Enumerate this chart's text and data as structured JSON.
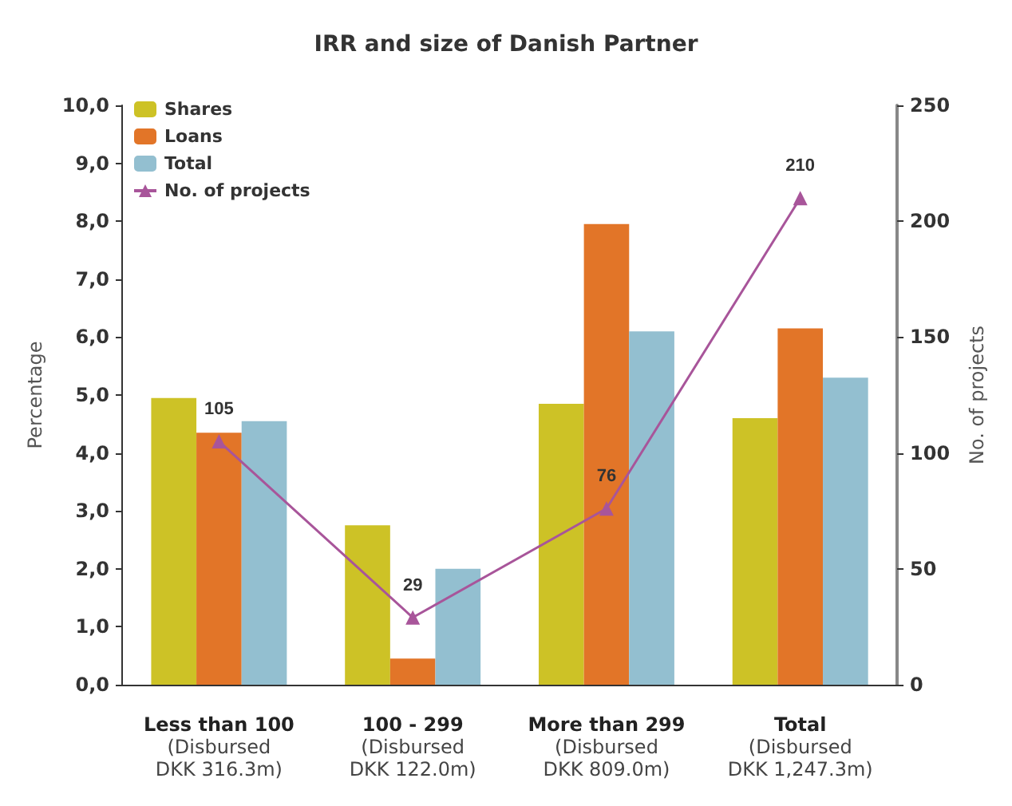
{
  "chart_data": {
    "type": "bar",
    "title": "IRR and size of Danish Partner",
    "ylabel": "Percentage",
    "y2label": "No. of projects",
    "categories": [
      "Less than 100\n(Disbursed\nDKK 316.3m)",
      "100 - 299\n(Disbursed\nDKK 122.0m)",
      "More than 299\n(Disbursed\nDKK 809.0m)",
      "Total\n(Disbursed\nDKK 1,247.3m)"
    ],
    "series": [
      {
        "name": "Shares",
        "color": "#cdc226",
        "values": [
          4.95,
          2.75,
          4.85,
          4.6
        ]
      },
      {
        "name": "Loans",
        "color": "#e27528",
        "values": [
          4.35,
          0.45,
          7.95,
          6.15
        ]
      },
      {
        "name": "Total",
        "color": "#93bfd0",
        "values": [
          4.55,
          2.0,
          6.1,
          5.3
        ]
      },
      {
        "name": "No. of projects",
        "type": "line",
        "axis": "y2",
        "color": "#a8559a",
        "marker": "triangle",
        "values": [
          105,
          29,
          76,
          210
        ],
        "value_labels": [
          "105",
          "29",
          "76",
          "210"
        ]
      }
    ],
    "ylim": [
      0,
      10
    ],
    "yticks": [
      {
        "value": 0,
        "label": "0,0"
      },
      {
        "value": 1,
        "label": "1,0"
      },
      {
        "value": 2,
        "label": "2,0"
      },
      {
        "value": 3,
        "label": "3,0"
      },
      {
        "value": 4,
        "label": "4,0"
      },
      {
        "value": 5,
        "label": "5,0"
      },
      {
        "value": 6,
        "label": "6,0"
      },
      {
        "value": 7,
        "label": "7,0"
      },
      {
        "value": 8,
        "label": "8,0"
      },
      {
        "value": 9,
        "label": "9,0"
      },
      {
        "value": 10,
        "label": "10,0"
      }
    ],
    "y2lim": [
      0,
      250
    ],
    "y2ticks": [
      0,
      50,
      100,
      150,
      200,
      250
    ],
    "grid": false,
    "legend": "top left"
  }
}
